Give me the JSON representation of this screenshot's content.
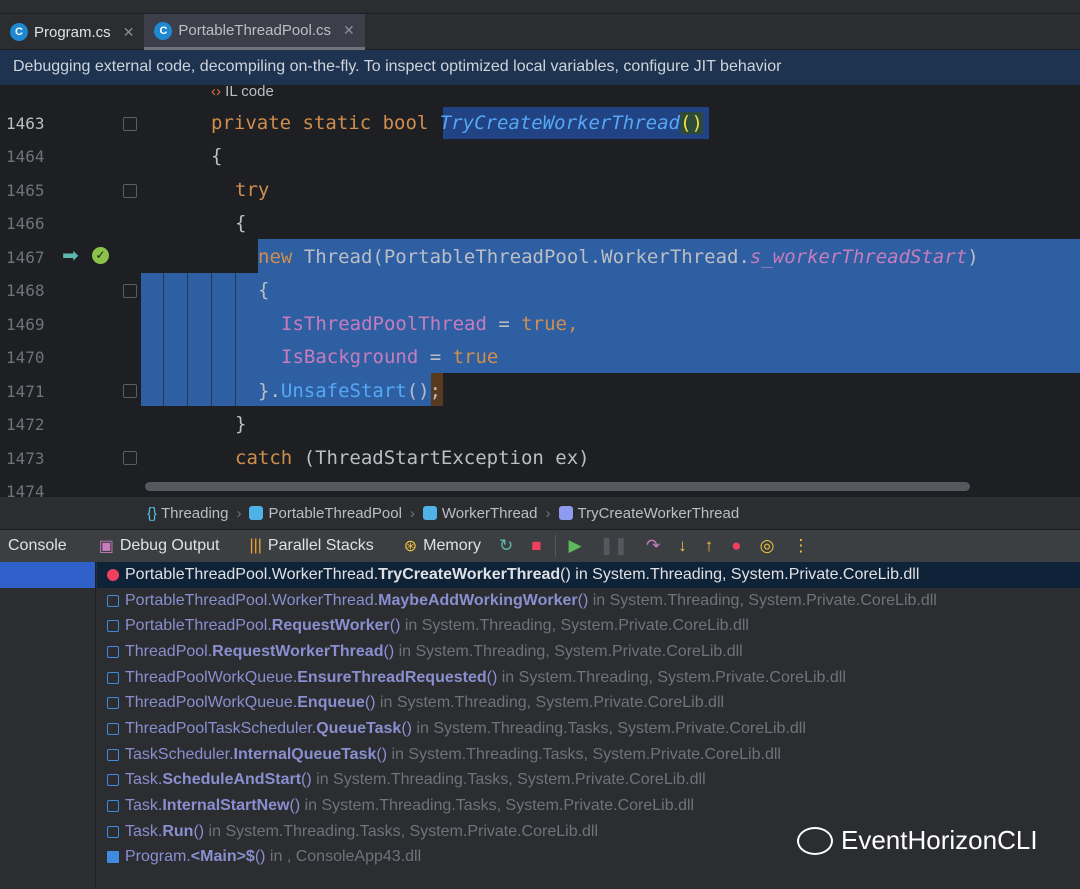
{
  "tabs": [
    {
      "label": "Program.cs",
      "active": false
    },
    {
      "label": "PortableThreadPool.cs",
      "active": true
    }
  ],
  "banner": "Debugging external code, decompiling on-the-fly. To inspect optimized local variables, configure JIT behavior",
  "il_code": "IL code",
  "line_numbers": [
    "1463",
    "1464",
    "1465",
    "1466",
    "1467",
    "1468",
    "1469",
    "1470",
    "1471",
    "1472",
    "1473",
    "1474"
  ],
  "code": {
    "l1463": {
      "kw": "private static bool ",
      "fn": "TryCreateWorkerThread",
      "rest": "()"
    },
    "l1464": "{",
    "l1465": "try",
    "l1466": "{",
    "l1467": {
      "kw": "new",
      "a": " Thread(PortableThreadPool.WorkerThread.",
      "it": "s_workerThreadStart",
      "b": ")"
    },
    "l1468": "{",
    "l1469": {
      "prop": "IsThreadPoolThread",
      "eq": " = ",
      "kw": "true",
      "c": ","
    },
    "l1470": {
      "prop": "IsBackground",
      "eq": " = ",
      "kw": "true"
    },
    "l1471": {
      "a": "}.",
      "fn": "UnsafeStart",
      "b": "();"
    },
    "l1472": "}",
    "l1473": {
      "kw": "catch",
      "a": " (ThreadStartException ex)"
    }
  },
  "breadcrumbs": [
    "Threading",
    "PortableThreadPool",
    "WorkerThread",
    "TryCreateWorkerThread"
  ],
  "toolbar": {
    "console": "Console",
    "debug_output": "Debug Output",
    "parallel_stacks": "Parallel Stacks",
    "memory": "Memory"
  },
  "frames": [
    {
      "prefix": "PortableThreadPool.WorkerThread.",
      "method": "TryCreateWorkerThread",
      "suffix": "()",
      "loc": " in System.Threading, System.Private.CoreLib.dll"
    },
    {
      "prefix": "PortableThreadPool.WorkerThread.",
      "method": "MaybeAddWorkingWorker",
      "suffix": "()",
      "loc": " in System.Threading, System.Private.CoreLib.dll"
    },
    {
      "prefix": "PortableThreadPool.",
      "method": "RequestWorker",
      "suffix": "()",
      "loc": " in System.Threading, System.Private.CoreLib.dll"
    },
    {
      "prefix": "ThreadPool.",
      "method": "RequestWorkerThread",
      "suffix": "()",
      "loc": " in System.Threading, System.Private.CoreLib.dll"
    },
    {
      "prefix": "ThreadPoolWorkQueue.",
      "method": "EnsureThreadRequested",
      "suffix": "()",
      "loc": " in System.Threading, System.Private.CoreLib.dll"
    },
    {
      "prefix": "ThreadPoolWorkQueue.",
      "method": "Enqueue",
      "suffix": "()",
      "loc": " in System.Threading, System.Private.CoreLib.dll"
    },
    {
      "prefix": "ThreadPoolTaskScheduler.",
      "method": "QueueTask",
      "suffix": "()",
      "loc": " in System.Threading.Tasks, System.Private.CoreLib.dll"
    },
    {
      "prefix": "TaskScheduler.",
      "method": "InternalQueueTask",
      "suffix": "()",
      "loc": " in System.Threading.Tasks, System.Private.CoreLib.dll"
    },
    {
      "prefix": "Task.",
      "method": "ScheduleAndStart",
      "suffix": "()",
      "loc": " in System.Threading.Tasks, System.Private.CoreLib.dll"
    },
    {
      "prefix": "Task.",
      "method": "InternalStartNew",
      "suffix": "()",
      "loc": " in System.Threading.Tasks, System.Private.CoreLib.dll"
    },
    {
      "prefix": "Task.",
      "method": "Run",
      "suffix": "()",
      "loc": " in System.Threading.Tasks, System.Private.CoreLib.dll"
    },
    {
      "prefix": "Program.",
      "method": "<Main>$",
      "suffix": "()",
      "loc": " in , ConsoleApp43.dll"
    }
  ],
  "watermark": "EventHorizonCLI"
}
